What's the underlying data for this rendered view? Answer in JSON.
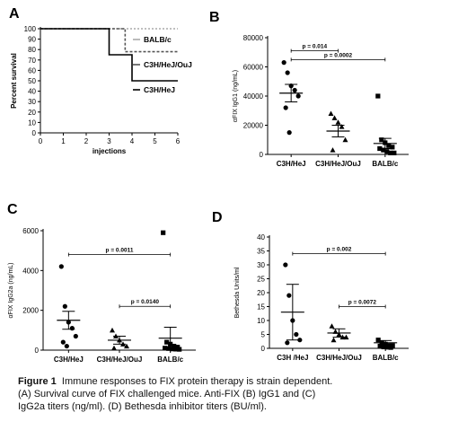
{
  "caption": {
    "label": "Figure 1",
    "line1": "Immune responses to FIX protein therapy is strain dependent.",
    "line2": "(A) Survival curve of FIX challenged mice.  Anti-FIX (B) IgG1 and (C)",
    "line3": "IgG2a titers (ng/ml).  (D) Bethesda inhibitor titers (BU/ml)."
  },
  "chart_data": [
    {
      "panel": "A",
      "type": "line",
      "subtype": "survival-step",
      "xlabel": "injections",
      "ylabel": "Percent survival",
      "xlim": [
        0,
        6
      ],
      "ylim": [
        0,
        100
      ],
      "xticks": [
        0,
        1,
        2,
        3,
        4,
        5,
        6
      ],
      "yticks": [
        0,
        10,
        20,
        30,
        40,
        50,
        60,
        70,
        80,
        90,
        100
      ],
      "series": [
        {
          "name": "BALB/c",
          "x": [
            0,
            6
          ],
          "y": [
            100,
            100
          ],
          "color": "#aaaaaa",
          "dash": "2,2"
        },
        {
          "name": "C3H/HeJ/OuJ",
          "x": [
            0,
            3.7,
            3.7,
            6
          ],
          "y": [
            100,
            100,
            78,
            78
          ],
          "color": "#555555",
          "dash": "3,2"
        },
        {
          "name": "C3H/HeJ",
          "x": [
            0,
            3,
            3,
            4,
            4,
            6
          ],
          "y": [
            100,
            100,
            75,
            75,
            50,
            50
          ],
          "color": "#000000",
          "dash": ""
        }
      ]
    },
    {
      "panel": "B",
      "type": "scatter",
      "subtype": "dot-plot",
      "ylabel": "αFIX IgG1 (ng/mL)",
      "ylim": [
        0,
        80000
      ],
      "yticks": [
        0,
        20000,
        40000,
        60000,
        80000
      ],
      "categories": [
        "C3H/HeJ",
        "C3H/HeJ/OuJ",
        "BALB/c"
      ],
      "markers": [
        "circle",
        "triangle",
        "square"
      ],
      "points": [
        [
          63000,
          56000,
          47000,
          44000,
          40000,
          32000,
          15000
        ],
        [
          28000,
          25000,
          22000,
          19000,
          10000,
          3000
        ],
        [
          40000,
          10000,
          8000,
          6000,
          5000,
          4000,
          3000,
          2000,
          1000,
          1000
        ]
      ],
      "means": [
        42000,
        16000,
        7500
      ],
      "sem": [
        6000,
        4000,
        3500
      ],
      "annotations": [
        {
          "text": "p = 0.014",
          "from": 0,
          "to": 1,
          "y": 71000
        },
        {
          "text": "p = 0.0002",
          "from": 0,
          "to": 2,
          "y": 65000
        }
      ]
    },
    {
      "panel": "C",
      "type": "scatter",
      "subtype": "dot-plot",
      "ylabel": "αFIX IgG2a (ng/mL)",
      "ylim": [
        0,
        6000
      ],
      "yticks": [
        0,
        2000,
        4000,
        6000
      ],
      "categories": [
        "C3H/HeJ",
        "C3H/HeJ/OuJ",
        "BALB/c"
      ],
      "markers": [
        "circle",
        "triangle",
        "square"
      ],
      "points": [
        [
          4200,
          2200,
          1400,
          1100,
          700,
          400,
          200
        ],
        [
          1000,
          700,
          500,
          300,
          200,
          100
        ],
        [
          5900,
          400,
          300,
          200,
          150,
          100,
          80,
          60,
          50,
          40
        ]
      ],
      "means": [
        1500,
        500,
        600
      ],
      "sem": [
        450,
        200,
        550
      ],
      "annotations": [
        {
          "text": "p = 0.0011",
          "from": 0,
          "to": 2,
          "y": 4800
        },
        {
          "text": "p = 0.0140",
          "from": 1,
          "to": 2,
          "y": 2200
        }
      ]
    },
    {
      "panel": "D",
      "type": "scatter",
      "subtype": "dot-plot",
      "ylabel": "Bethesda Units/ml",
      "ylim": [
        0,
        40
      ],
      "yticks": [
        0,
        5,
        10,
        15,
        20,
        25,
        30,
        35,
        40
      ],
      "categories": [
        "C3H /HeJ",
        "C3H/HeJ/OuJ",
        "BALB/c"
      ],
      "markers": [
        "circle",
        "triangle",
        "square"
      ],
      "points": [
        [
          30,
          19,
          10,
          5,
          3,
          2
        ],
        [
          8,
          6,
          5,
          4,
          4,
          3
        ],
        [
          3,
          2,
          1.5,
          1,
          1,
          0.8,
          0.5,
          0.4,
          0.3
        ]
      ],
      "means": [
        13,
        5.5,
        2
      ],
      "sem": [
        10,
        1.5,
        0.8
      ],
      "annotations": [
        {
          "text": "p = 0.002",
          "from": 0,
          "to": 2,
          "y": 34
        },
        {
          "text": "p = 0.0072",
          "from": 1,
          "to": 2,
          "y": 15
        }
      ]
    }
  ]
}
